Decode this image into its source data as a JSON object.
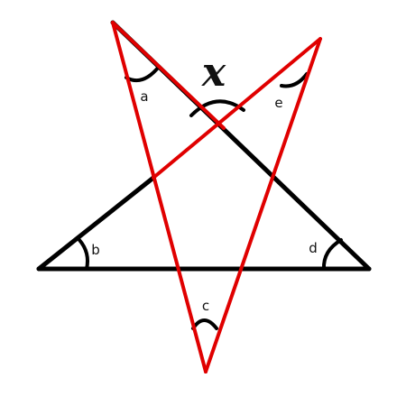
{
  "diagram": {
    "colors": {
      "black": "#000000",
      "red": "#e00000"
    },
    "labels": {
      "a": "a",
      "b": "b",
      "c": "c",
      "d": "d",
      "e": "e",
      "x": "x"
    }
  }
}
